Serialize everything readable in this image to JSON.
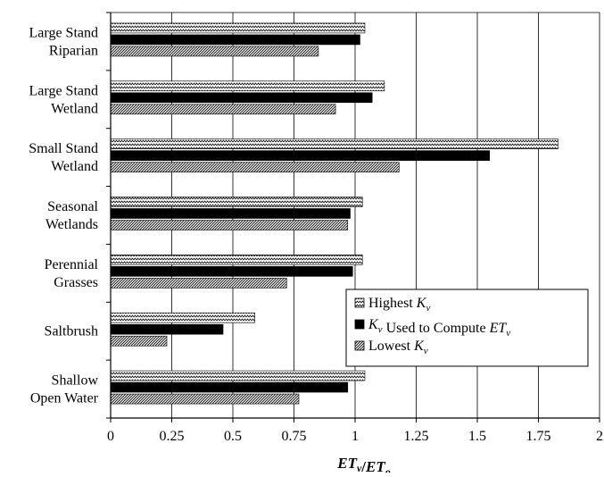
{
  "chart_data": {
    "type": "bar",
    "orientation": "horizontal",
    "categories": [
      [
        "Large Stand",
        "Riparian"
      ],
      [
        "Large Stand",
        "Wetland"
      ],
      [
        "Small Stand",
        "Wetland"
      ],
      [
        "Seasonal",
        "Wetlands"
      ],
      [
        "Perennial",
        "Grasses"
      ],
      [
        "Saltbrush"
      ],
      [
        "Shallow",
        "Open Water"
      ]
    ],
    "series": [
      {
        "name": "Highest K_v",
        "pattern": "zigzag",
        "values": [
          1.04,
          1.12,
          1.83,
          1.03,
          1.03,
          0.59,
          1.04
        ]
      },
      {
        "name": "K_v Used to Compute ET_v",
        "pattern": "solid",
        "color": "#000000",
        "values": [
          1.02,
          1.07,
          1.55,
          0.98,
          0.99,
          0.46,
          0.97
        ]
      },
      {
        "name": "Lowest K_v",
        "pattern": "diagonal",
        "values": [
          0.85,
          0.92,
          1.18,
          0.97,
          0.72,
          0.23,
          0.77
        ]
      }
    ],
    "x_ticks": [
      "0",
      "0.25",
      "0.5",
      "0.75",
      "1",
      "1.25",
      "1.5",
      "1.75",
      "2"
    ],
    "xlim": [
      0,
      2
    ],
    "xlabel": "ET_v/ET_o",
    "grid": "vertical",
    "legend_position": "right-lower"
  }
}
